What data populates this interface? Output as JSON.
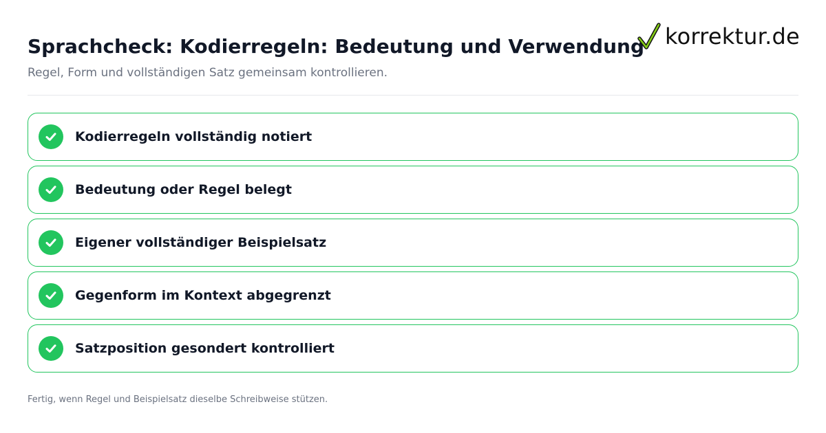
{
  "header": {
    "title": "Sprachcheck: Kodierregeln: Bedeutung und Verwendung",
    "subtitle": "Regel, Form und vollständigen Satz gemeinsam kontrollieren."
  },
  "logo": {
    "text": "korrektur.de",
    "icon": "checkmark-icon"
  },
  "checklist": {
    "items": [
      {
        "label": "Kodierregeln vollständig notiert",
        "checked": true,
        "icon": "check-circle-icon"
      },
      {
        "label": "Bedeutung oder Regel belegt",
        "checked": true,
        "icon": "check-circle-icon"
      },
      {
        "label": "Eigener vollständiger Beispielsatz",
        "checked": true,
        "icon": "check-circle-icon"
      },
      {
        "label": "Gegenform im Kontext abgegrenzt",
        "checked": true,
        "icon": "check-circle-icon"
      },
      {
        "label": "Satzposition gesondert kontrolliert",
        "checked": true,
        "icon": "check-circle-icon"
      }
    ]
  },
  "footer": {
    "text": "Fertig, wenn Regel und Beispielsatz dieselbe Schreibweise stützen."
  },
  "colors": {
    "accent": "#22c55e",
    "title": "#111827",
    "muted": "#6b7280",
    "divider": "#e5e7eb"
  }
}
